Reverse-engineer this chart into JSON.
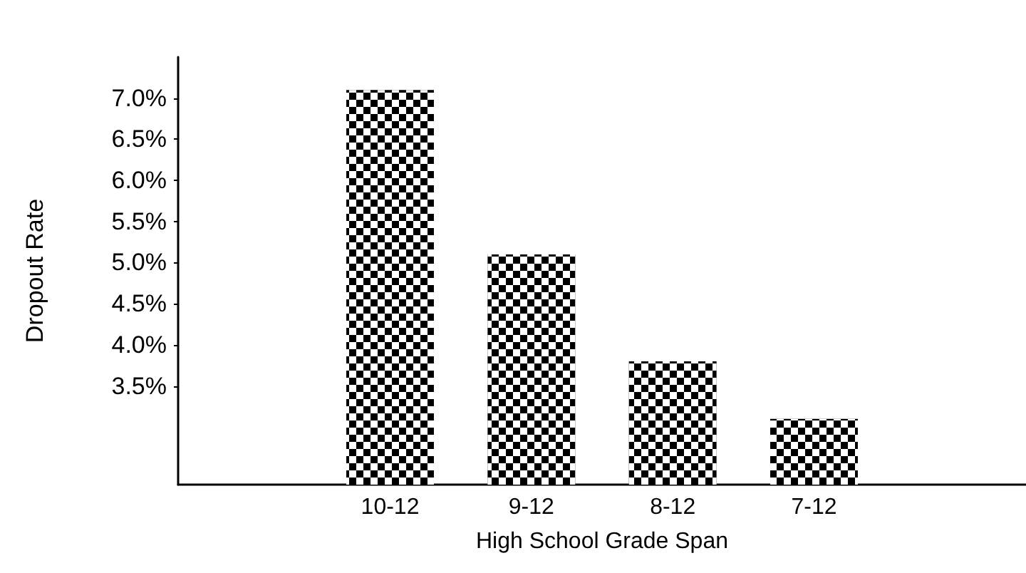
{
  "chart_data": {
    "type": "bar",
    "xlabel": "High School Grade Span",
    "ylabel": "Dropout Rate",
    "categories": [
      null,
      "10-12",
      "9-12",
      "8-12",
      "7-12",
      null
    ],
    "values": [
      null,
      7.1,
      5.1,
      3.8,
      3.1,
      null
    ],
    "color": "#000000",
    "ylim": [
      2.3,
      7.5
    ],
    "yticks": [
      {
        "value": 3.5,
        "label": "3.5%"
      },
      {
        "value": 4.0,
        "label": "4.0%"
      },
      {
        "value": 4.5,
        "label": "4.5%"
      },
      {
        "value": 5.0,
        "label": "5.0%"
      },
      {
        "value": 5.5,
        "label": "5.5%"
      },
      {
        "value": 6.0,
        "label": "6.0%"
      },
      {
        "value": 6.5,
        "label": "6.5%"
      },
      {
        "value": 7.0,
        "label": "7.0%"
      }
    ],
    "grid": false
  }
}
